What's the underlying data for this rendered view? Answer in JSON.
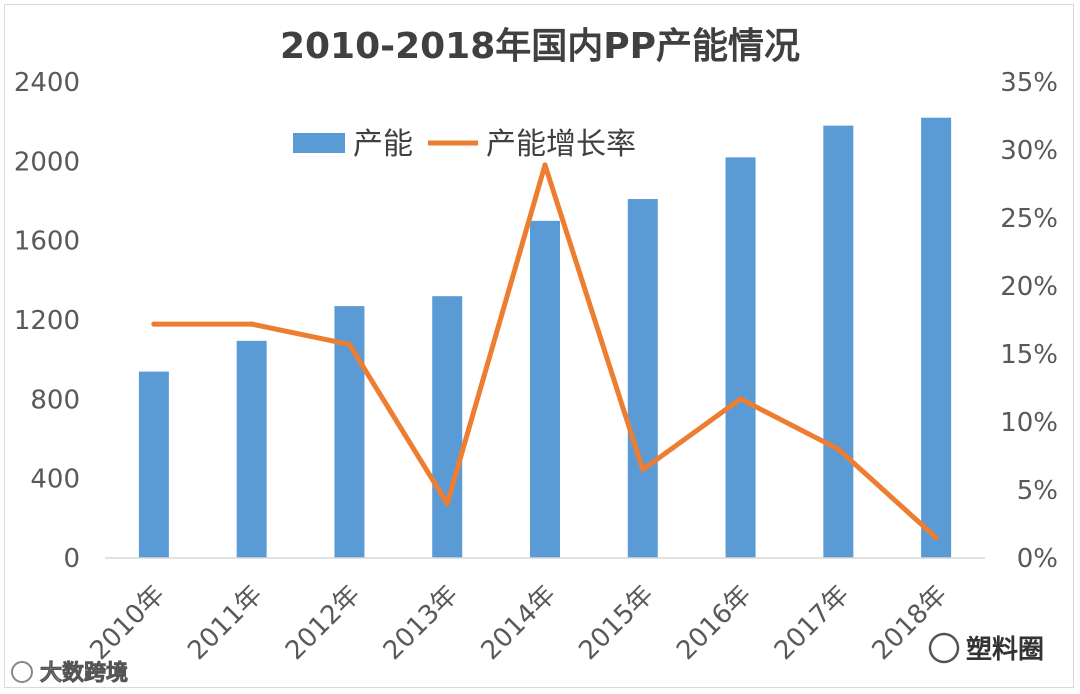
{
  "chart_data": {
    "type": "bar+line",
    "title": "2010-2018年国内PP产能情况",
    "categories": [
      "2010年",
      "2011年",
      "2012年",
      "2013年",
      "2014年",
      "2015年",
      "2016年",
      "2017年",
      "2018年"
    ],
    "series": [
      {
        "name": "产能",
        "type": "bar",
        "axis": "left",
        "color": "#5b9bd5",
        "values": [
          940,
          1095,
          1270,
          1320,
          1700,
          1810,
          2020,
          2180,
          2220
        ]
      },
      {
        "name": "产能增长率",
        "type": "line",
        "axis": "right",
        "color": "#ed7d31",
        "values": [
          0.172,
          0.172,
          0.157,
          0.04,
          0.289,
          0.065,
          0.117,
          0.08,
          0.015
        ]
      }
    ],
    "left_axis": {
      "min": 0,
      "max": 2400,
      "ticks": [
        "0",
        "400",
        "800",
        "1200",
        "1600",
        "2000",
        "2400"
      ]
    },
    "right_axis": {
      "min": 0,
      "max": 0.35,
      "ticks": [
        "0%",
        "5%",
        "10%",
        "15%",
        "20%",
        "25%",
        "30%",
        "35%"
      ]
    },
    "legend": [
      "产能",
      "产能增长率"
    ],
    "legend_position": "top"
  },
  "watermarks": {
    "left": "大数跨境",
    "right": "塑料圈"
  }
}
